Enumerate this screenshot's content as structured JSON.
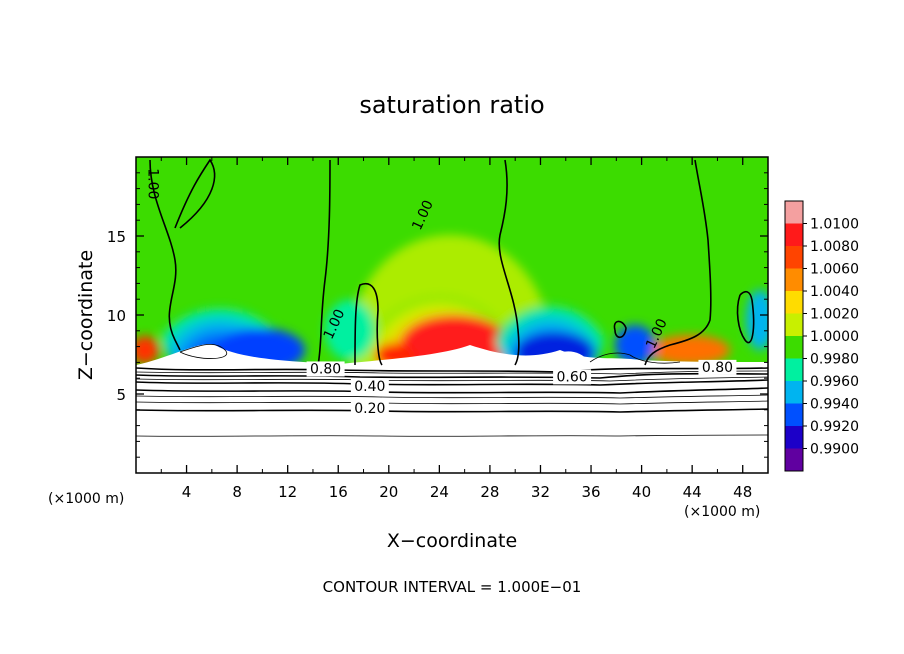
{
  "chart_data": {
    "type": "heatmap",
    "title": "saturation ratio",
    "xlabel": "X−coordinate",
    "ylabel": "Z−coordinate",
    "x_unit_left": "(×1000 m)",
    "x_unit_right": "(×1000 m)",
    "xlim": [
      0,
      50
    ],
    "ylim": [
      0,
      20
    ],
    "x_ticks": [
      4,
      8,
      12,
      16,
      20,
      24,
      28,
      32,
      36,
      40,
      44,
      48
    ],
    "y_ticks": [
      5,
      10,
      15
    ],
    "colorbar": {
      "levels": [
        "1.0100",
        "1.0080",
        "1.0060",
        "1.0040",
        "1.0020",
        "1.0000",
        "0.9980",
        "0.9960",
        "0.9940",
        "0.9920",
        "0.9900"
      ],
      "colors": [
        "#f4a0a0",
        "#ff1a1a",
        "#ff4400",
        "#ff8c00",
        "#ffdc00",
        "#c8f000",
        "#3cdc00",
        "#00f0a0",
        "#00b4f0",
        "#0050ff",
        "#1c00c8",
        "#6000a0"
      ]
    },
    "contour_labels": [
      {
        "text": "1.00",
        "x": 1.0,
        "y": 18.3
      },
      {
        "text": "1.00",
        "x": 23.0,
        "y": 16.2
      },
      {
        "text": "1.00",
        "x": 16.0,
        "y": 9.3
      },
      {
        "text": "1.00",
        "x": 41.5,
        "y": 8.7
      },
      {
        "text": "0.80",
        "x": 15.0,
        "y": 6.3
      },
      {
        "text": "0.80",
        "x": 46.0,
        "y": 6.4
      },
      {
        "text": "0.60",
        "x": 34.5,
        "y": 5.8
      },
      {
        "text": "0.40",
        "x": 18.5,
        "y": 5.2
      },
      {
        "text": "0.20",
        "x": 18.5,
        "y": 3.8
      }
    ],
    "contour_interval_text": "CONTOUR INTERVAL = 1.000E−01"
  }
}
